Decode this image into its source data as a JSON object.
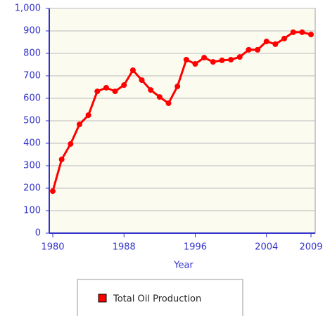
{
  "chart_data": {
    "type": "line",
    "x_label": "Year",
    "x": [
      1980,
      1981,
      1982,
      1983,
      1984,
      1985,
      1986,
      1987,
      1988,
      1989,
      1990,
      1991,
      1992,
      1993,
      1994,
      1995,
      1996,
      1997,
      1998,
      1999,
      2000,
      2001,
      2002,
      2003,
      2004,
      2005,
      2006,
      2007,
      2008,
      2009
    ],
    "series": [
      {
        "name": "Total Oil Production",
        "color": "#ff0000",
        "values": [
          187,
          328,
          397,
          484,
          525,
          631,
          647,
          631,
          659,
          725,
          681,
          637,
          606,
          578,
          653,
          772,
          753,
          781,
          762,
          769,
          772,
          784,
          816,
          816,
          853,
          841,
          866,
          894,
          894,
          884
        ]
      }
    ],
    "xlim": [
      1980,
      2009
    ],
    "xticks": [
      1980,
      1988,
      1996,
      2004,
      2009
    ],
    "ylim": [
      0,
      1000
    ],
    "yticks": [
      0,
      100,
      200,
      300,
      400,
      500,
      600,
      700,
      800,
      900,
      {
        "value": 1000,
        "label": "1,000"
      }
    ],
    "grid": true
  }
}
